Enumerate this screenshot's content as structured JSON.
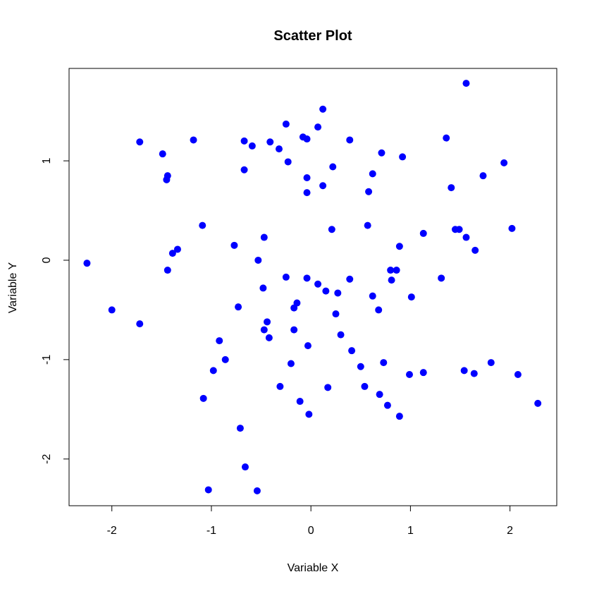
{
  "chart_data": {
    "type": "scatter",
    "title": "Scatter Plot",
    "xlabel": "Variable X",
    "ylabel": "Variable Y",
    "xlim": [
      -2.43,
      2.47
    ],
    "ylim": [
      -2.47,
      1.93
    ],
    "xticks": [
      -2,
      -1,
      0,
      1,
      2
    ],
    "yticks": [
      -2,
      -1,
      0,
      1
    ],
    "xtick_labels": [
      "-2",
      "-1",
      "0",
      "1",
      "2"
    ],
    "ytick_labels": [
      "-2",
      "-1",
      "0",
      "1"
    ],
    "grid": false,
    "marker_color": "#0000ff",
    "points": [
      {
        "x": -2.25,
        "y": -0.03
      },
      {
        "x": -2.0,
        "y": -0.5
      },
      {
        "x": -1.72,
        "y": -0.64
      },
      {
        "x": -1.72,
        "y": 1.19
      },
      {
        "x": -1.49,
        "y": 1.07
      },
      {
        "x": -1.44,
        "y": 0.85
      },
      {
        "x": -1.45,
        "y": 0.81
      },
      {
        "x": -1.44,
        "y": -0.1
      },
      {
        "x": -1.39,
        "y": 0.07
      },
      {
        "x": -1.34,
        "y": 0.11
      },
      {
        "x": -1.18,
        "y": 1.21
      },
      {
        "x": -1.09,
        "y": 0.35
      },
      {
        "x": -1.08,
        "y": -1.39
      },
      {
        "x": -1.03,
        "y": -2.31
      },
      {
        "x": -0.98,
        "y": -1.11
      },
      {
        "x": -0.92,
        "y": -0.81
      },
      {
        "x": -0.86,
        "y": -1.0
      },
      {
        "x": -0.77,
        "y": 0.15
      },
      {
        "x": -0.73,
        "y": -0.47
      },
      {
        "x": -0.71,
        "y": -1.69
      },
      {
        "x": -0.67,
        "y": 1.2
      },
      {
        "x": -0.67,
        "y": 0.91
      },
      {
        "x": -0.66,
        "y": -2.08
      },
      {
        "x": -0.59,
        "y": 1.15
      },
      {
        "x": -0.54,
        "y": -2.32
      },
      {
        "x": -0.53,
        "y": 0.0
      },
      {
        "x": -0.48,
        "y": -0.28
      },
      {
        "x": -0.47,
        "y": 0.23
      },
      {
        "x": -0.47,
        "y": -0.7
      },
      {
        "x": -0.44,
        "y": -0.62
      },
      {
        "x": -0.42,
        "y": -0.78
      },
      {
        "x": -0.41,
        "y": 1.19
      },
      {
        "x": -0.32,
        "y": 1.12
      },
      {
        "x": -0.31,
        "y": -1.27
      },
      {
        "x": -0.25,
        "y": 1.37
      },
      {
        "x": -0.25,
        "y": -0.17
      },
      {
        "x": -0.23,
        "y": 0.99
      },
      {
        "x": -0.2,
        "y": -1.04
      },
      {
        "x": -0.17,
        "y": -0.48
      },
      {
        "x": -0.17,
        "y": -0.7
      },
      {
        "x": -0.14,
        "y": -0.43
      },
      {
        "x": -0.11,
        "y": -1.42
      },
      {
        "x": -0.08,
        "y": 1.24
      },
      {
        "x": -0.04,
        "y": 1.22
      },
      {
        "x": -0.04,
        "y": 0.83
      },
      {
        "x": -0.04,
        "y": 0.68
      },
      {
        "x": -0.04,
        "y": -0.18
      },
      {
        "x": -0.03,
        "y": -0.86
      },
      {
        "x": -0.02,
        "y": -1.55
      },
      {
        "x": 0.07,
        "y": 1.34
      },
      {
        "x": 0.07,
        "y": -0.24
      },
      {
        "x": 0.12,
        "y": 1.52
      },
      {
        "x": 0.12,
        "y": 0.75
      },
      {
        "x": 0.15,
        "y": -0.31
      },
      {
        "x": 0.17,
        "y": -1.28
      },
      {
        "x": 0.21,
        "y": 0.31
      },
      {
        "x": 0.22,
        "y": 0.94
      },
      {
        "x": 0.25,
        "y": -0.54
      },
      {
        "x": 0.27,
        "y": -0.33
      },
      {
        "x": 0.3,
        "y": -0.75
      },
      {
        "x": 0.39,
        "y": 1.21
      },
      {
        "x": 0.39,
        "y": -0.19
      },
      {
        "x": 0.41,
        "y": -0.91
      },
      {
        "x": 0.5,
        "y": -1.07
      },
      {
        "x": 0.54,
        "y": -1.27
      },
      {
        "x": 0.57,
        "y": 0.35
      },
      {
        "x": 0.58,
        "y": 0.69
      },
      {
        "x": 0.62,
        "y": 0.87
      },
      {
        "x": 0.62,
        "y": -0.36
      },
      {
        "x": 0.68,
        "y": -0.5
      },
      {
        "x": 0.69,
        "y": -1.35
      },
      {
        "x": 0.71,
        "y": 1.08
      },
      {
        "x": 0.73,
        "y": -1.03
      },
      {
        "x": 0.77,
        "y": -1.46
      },
      {
        "x": 0.8,
        "y": -0.1
      },
      {
        "x": 0.81,
        "y": -0.2
      },
      {
        "x": 0.86,
        "y": -0.1
      },
      {
        "x": 0.89,
        "y": 0.14
      },
      {
        "x": 0.89,
        "y": -1.57
      },
      {
        "x": 0.92,
        "y": 1.04
      },
      {
        "x": 0.99,
        "y": -1.15
      },
      {
        "x": 1.01,
        "y": -0.37
      },
      {
        "x": 1.13,
        "y": 0.27
      },
      {
        "x": 1.13,
        "y": -1.13
      },
      {
        "x": 1.31,
        "y": -0.18
      },
      {
        "x": 1.36,
        "y": 1.23
      },
      {
        "x": 1.41,
        "y": 0.73
      },
      {
        "x": 1.45,
        "y": 0.31
      },
      {
        "x": 1.49,
        "y": 0.31
      },
      {
        "x": 1.54,
        "y": -1.11
      },
      {
        "x": 1.56,
        "y": 0.23
      },
      {
        "x": 1.56,
        "y": 1.78
      },
      {
        "x": 1.64,
        "y": -1.14
      },
      {
        "x": 1.65,
        "y": 0.1
      },
      {
        "x": 1.73,
        "y": 0.85
      },
      {
        "x": 1.81,
        "y": -1.03
      },
      {
        "x": 1.94,
        "y": 0.98
      },
      {
        "x": 2.02,
        "y": 0.32
      },
      {
        "x": 2.08,
        "y": -1.15
      },
      {
        "x": 2.28,
        "y": -1.44
      }
    ]
  }
}
